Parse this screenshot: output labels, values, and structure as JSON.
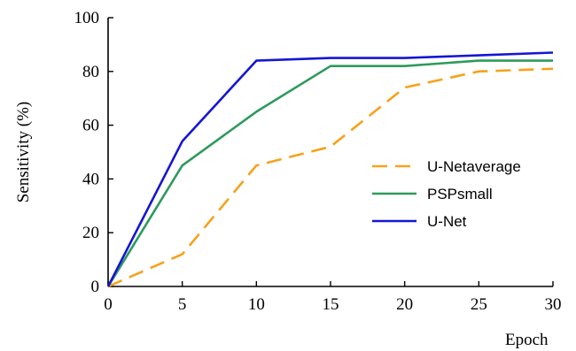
{
  "chart_data": {
    "type": "line",
    "title": "",
    "xlabel": "Epoch",
    "ylabel": "Sensitivity  (%)",
    "xlim": [
      0,
      30
    ],
    "ylim": [
      0,
      100
    ],
    "xticks": [
      "0",
      "5",
      "10",
      "15",
      "20",
      "25",
      "30"
    ],
    "yticks": [
      "0",
      "20",
      "40",
      "60",
      "80",
      "100"
    ],
    "grid": false,
    "legend_position": "center-right",
    "series": [
      {
        "name": "U-Netaverage",
        "color": "#F5A21B",
        "dash": "dashed",
        "x": [
          0,
          5,
          10,
          15,
          20,
          25,
          30
        ],
        "values": [
          0,
          12,
          45,
          52,
          74,
          80,
          81
        ]
      },
      {
        "name": "PSPsmall",
        "color": "#2E9A5C",
        "dash": "solid",
        "x": [
          0,
          5,
          10,
          15,
          20,
          25,
          30
        ],
        "values": [
          0,
          45,
          65,
          82,
          82,
          84,
          84
        ]
      },
      {
        "name": "U-Net",
        "color": "#1515D6",
        "dash": "solid",
        "x": [
          0,
          5,
          10,
          15,
          20,
          25,
          30
        ],
        "values": [
          0,
          54,
          84,
          85,
          85,
          86,
          87
        ]
      }
    ]
  }
}
